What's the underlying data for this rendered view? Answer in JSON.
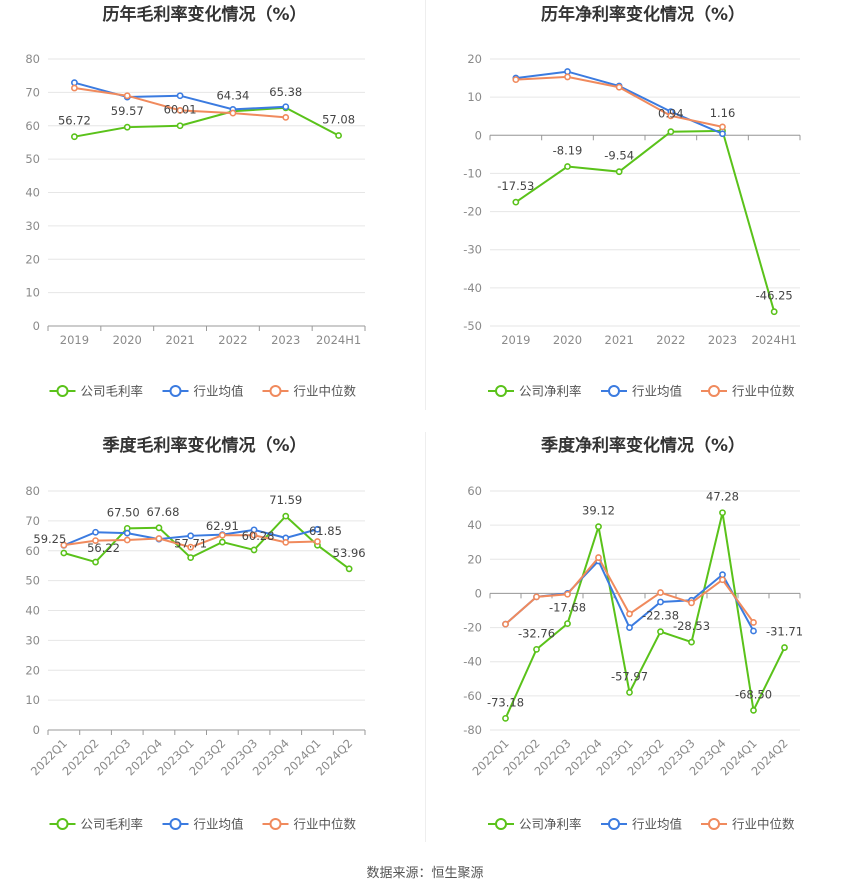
{
  "source_label": "数据来源：恒生聚源",
  "colors": {
    "company": "#5ac21a",
    "avg": "#3b7be0",
    "median": "#f08a5d",
    "grid": "#e6e6e6",
    "axis": "#999999"
  },
  "chart_data": [
    {
      "type": "line",
      "title": "历年毛利率变化情况（%）",
      "categories": [
        "2019",
        "2020",
        "2021",
        "2022",
        "2023",
        "2024H1"
      ],
      "ylim": [
        0,
        80
      ],
      "yticks": [
        0,
        10,
        20,
        30,
        40,
        50,
        60,
        70,
        80
      ],
      "rotate_x": false,
      "series": [
        {
          "name": "公司毛利率",
          "key": "company",
          "values": [
            56.72,
            59.57,
            60.01,
            64.34,
            65.38,
            57.08
          ],
          "labels": [
            "56.72",
            "59.57",
            "60.01",
            "64.34",
            "65.38",
            "57.08"
          ]
        },
        {
          "name": "行业均值",
          "key": "avg",
          "values": [
            72.9,
            68.6,
            69.0,
            64.9,
            65.7,
            null
          ]
        },
        {
          "name": "行业中位数",
          "key": "median",
          "values": [
            71.3,
            69.0,
            64.6,
            63.8,
            62.5,
            null
          ]
        }
      ],
      "legend": "bottom"
    },
    {
      "type": "line",
      "title": "历年净利率变化情况（%）",
      "categories": [
        "2019",
        "2020",
        "2021",
        "2022",
        "2023",
        "2024H1"
      ],
      "ylim": [
        -50,
        20
      ],
      "yticks": [
        -50,
        -40,
        -30,
        -20,
        -10,
        0,
        10,
        20
      ],
      "rotate_x": false,
      "series": [
        {
          "name": "公司净利率",
          "key": "company",
          "values": [
            -17.53,
            -8.19,
            -9.54,
            0.94,
            1.16,
            -46.25
          ],
          "labels": [
            "-17.53",
            "-8.19",
            "-9.54",
            "0.94",
            "1.16",
            "-46.25"
          ]
        },
        {
          "name": "行业均值",
          "key": "avg",
          "values": [
            15.0,
            16.7,
            12.9,
            6.2,
            0.4,
            null
          ]
        },
        {
          "name": "行业中位数",
          "key": "median",
          "values": [
            14.6,
            15.3,
            12.6,
            5.1,
            2.2,
            null
          ]
        }
      ],
      "legend": "bottom"
    },
    {
      "type": "line",
      "title": "季度毛利率变化情况（%）",
      "categories": [
        "2022Q1",
        "2022Q2",
        "2022Q3",
        "2022Q4",
        "2023Q1",
        "2023Q2",
        "2023Q3",
        "2023Q4",
        "2024Q1",
        "2024Q2"
      ],
      "ylim": [
        0,
        80
      ],
      "yticks": [
        0,
        10,
        20,
        30,
        40,
        50,
        60,
        70,
        80
      ],
      "rotate_x": true,
      "series": [
        {
          "name": "公司毛利率",
          "key": "company",
          "values": [
            59.25,
            56.22,
            67.5,
            67.68,
            57.71,
            62.91,
            60.28,
            71.59,
            61.85,
            53.96
          ],
          "labels": [
            "59.25",
            "56.22",
            "67.50",
            "67.68",
            "57.71",
            "62.91",
            "60.28",
            "71.59",
            "61.85",
            "53.96"
          ]
        },
        {
          "name": "行业均值",
          "key": "avg",
          "values": [
            61.8,
            66.2,
            65.9,
            63.9,
            65.0,
            65.4,
            67.0,
            64.3,
            67.2,
            null
          ]
        },
        {
          "name": "行业中位数",
          "key": "median",
          "values": [
            61.9,
            63.4,
            63.6,
            64.1,
            61.2,
            65.2,
            65.2,
            62.8,
            63.1,
            null
          ]
        }
      ],
      "legend": "bottom"
    },
    {
      "type": "line",
      "title": "季度净利率变化情况（%）",
      "categories": [
        "2022Q1",
        "2022Q2",
        "2022Q3",
        "2022Q4",
        "2023Q1",
        "2023Q2",
        "2023Q3",
        "2023Q4",
        "2024Q1",
        "2024Q2"
      ],
      "ylim": [
        -80,
        60
      ],
      "yticks": [
        -80,
        -60,
        -40,
        -20,
        0,
        20,
        40,
        60
      ],
      "rotate_x": true,
      "series": [
        {
          "name": "公司净利率",
          "key": "company",
          "values": [
            -73.18,
            -32.76,
            -17.68,
            39.12,
            -57.97,
            -22.38,
            -28.53,
            47.28,
            -68.5,
            -31.71
          ],
          "labels": [
            "-73.18",
            "-32.76",
            "-17.68",
            "39.12",
            "-57.97",
            "-22.38",
            "-28.53",
            "47.28",
            "-68.50",
            "-31.71"
          ]
        },
        {
          "name": "行业均值",
          "key": "avg",
          "values": [
            -18.0,
            -2.0,
            0.0,
            19.0,
            -20.0,
            -5.0,
            -4.0,
            11.0,
            -22.0,
            null
          ]
        },
        {
          "name": "行业中位数",
          "key": "median",
          "values": [
            -18.0,
            -2.0,
            -0.5,
            21.0,
            -12.0,
            0.5,
            -5.5,
            8.0,
            -17.0,
            null
          ]
        }
      ],
      "legend": "bottom"
    }
  ]
}
